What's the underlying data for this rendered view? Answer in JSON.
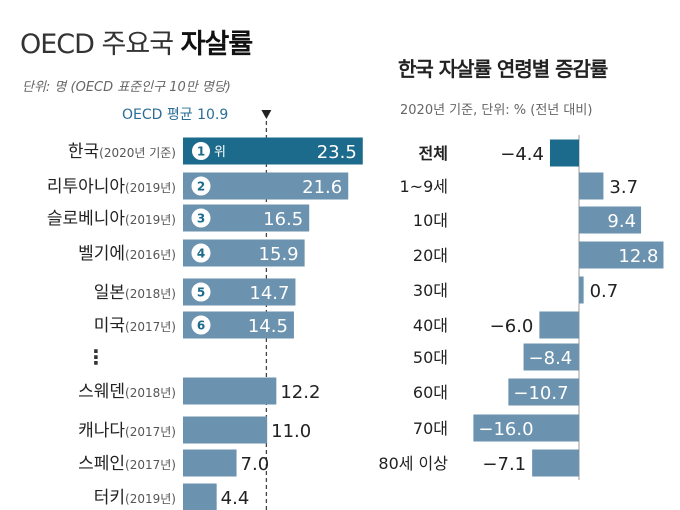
{
  "left": {
    "title_plain": "OECD 주요국 ",
    "title_bold": "자살률",
    "unit": "단위: 명 (OECD 표준인구 10만 명당)",
    "average_label": "OECD 평균 10.9"
  },
  "right": {
    "title": "한국 자살률 연령별 증감률",
    "unit": "2020년 기준, 단위: % (전년 대비)"
  },
  "colors": {
    "korea": "#1d6b8c",
    "bar": "#6b92ae",
    "text": "#222222",
    "avg_line": "#444444",
    "badge_bg": "#ffffff",
    "badge_text": "#1d6b8c"
  },
  "chart_data": [
    {
      "type": "bar",
      "orientation": "horizontal",
      "title": "OECD 주요국 자살률",
      "reference_line": {
        "label": "OECD 평균 10.9",
        "value": 10.9
      },
      "rank_suffix": "위",
      "ellipsis": "⋮",
      "countries": [
        {
          "name": "한국",
          "year": "(2020년 기준)",
          "value": 23.5,
          "rank": 1
        },
        {
          "name": "리투아니아",
          "year": "(2019년)",
          "value": 21.6,
          "rank": 2
        },
        {
          "name": "슬로베니아",
          "year": "(2019년)",
          "value": 16.5,
          "rank": 3
        },
        {
          "name": "벨기에",
          "year": "(2016년)",
          "value": 15.9,
          "rank": 4
        },
        {
          "name": "일본",
          "year": "(2018년)",
          "value": 14.7,
          "rank": 5
        },
        {
          "name": "미국",
          "year": "(2017년)",
          "value": 14.5,
          "rank": 6
        },
        {
          "name": "스웨덴",
          "year": "(2018년)",
          "value": 12.2
        },
        {
          "name": "캐나다",
          "year": "(2017년)",
          "value": 11.0
        },
        {
          "name": "스페인",
          "year": "(2017년)",
          "value": 7.0
        },
        {
          "name": "터키",
          "year": "(2019년)",
          "value": 4.4
        }
      ]
    },
    {
      "type": "bar",
      "orientation": "horizontal",
      "title": "한국 자살률 연령별 증감률",
      "categories": [
        "전체",
        "1~9세",
        "10대",
        "20대",
        "30대",
        "40대",
        "50대",
        "60대",
        "70대",
        "80세 이상"
      ],
      "values": [
        -4.4,
        3.7,
        9.4,
        12.8,
        0.7,
        -6.0,
        -8.4,
        -10.7,
        -16.0,
        -7.1
      ]
    }
  ]
}
